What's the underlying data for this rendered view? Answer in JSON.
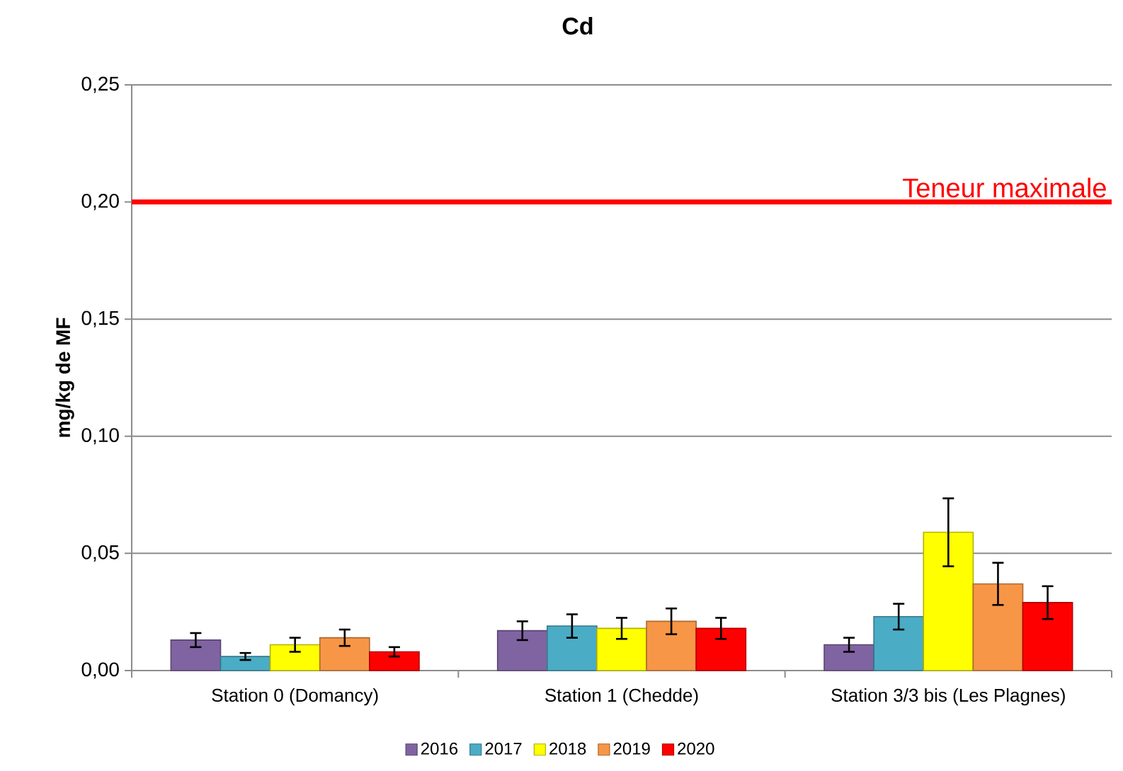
{
  "chart_data": {
    "type": "bar",
    "title": "Cd",
    "ylabel": "mg/kg de MF",
    "categories": [
      "Station 0 (Domancy)",
      "Station 1 (Chedde)",
      "Station 3/3 bis (Les Plagnes)"
    ],
    "series": [
      {
        "name": "2016",
        "color": "#8064a2",
        "values": [
          0.013,
          0.017,
          0.011
        ],
        "errors": [
          0.003,
          0.004,
          0.003
        ]
      },
      {
        "name": "2017",
        "color": "#4bacc6",
        "values": [
          0.006,
          0.019,
          0.023
        ],
        "errors": [
          0.0015,
          0.005,
          0.0055
        ]
      },
      {
        "name": "2018",
        "color": "#ffff00",
        "values": [
          0.011,
          0.018,
          0.059
        ],
        "errors": [
          0.003,
          0.0045,
          0.0145
        ]
      },
      {
        "name": "2019",
        "color": "#f79646",
        "values": [
          0.014,
          0.021,
          0.037
        ],
        "errors": [
          0.0035,
          0.0055,
          0.009
        ]
      },
      {
        "name": "2020",
        "color": "#ff0000",
        "values": [
          0.008,
          0.018,
          0.029
        ],
        "errors": [
          0.002,
          0.0045,
          0.007
        ]
      }
    ],
    "ylim": [
      0,
      0.25
    ],
    "yticks": [
      {
        "value": 0,
        "label": "0,00"
      },
      {
        "value": 0.05,
        "label": "0,05"
      },
      {
        "value": 0.1,
        "label": "0,10"
      },
      {
        "value": 0.15,
        "label": "0,15"
      },
      {
        "value": 0.2,
        "label": "0,20"
      },
      {
        "value": 0.25,
        "label": "0,25"
      }
    ],
    "ref_lines": [
      {
        "axis": "y",
        "value": 0.2,
        "label": "Teneur maximale",
        "color": "#ff0000"
      }
    ],
    "grid": "y",
    "legend": "bottom"
  }
}
